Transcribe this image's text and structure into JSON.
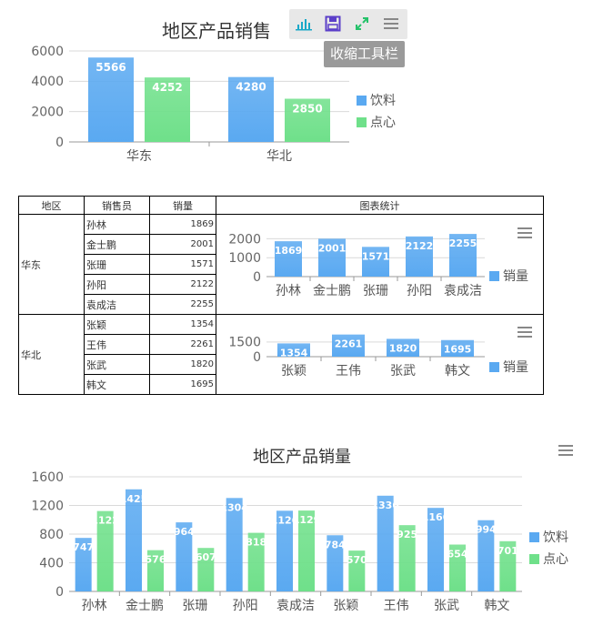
{
  "toolbar": {
    "tooltip": "收缩工具栏",
    "icons": [
      "bar-chart-icon",
      "save-icon",
      "expand-icon",
      "menu-icon"
    ]
  },
  "table": {
    "headers": [
      "地区",
      "销售员",
      "销量",
      "图表统计"
    ],
    "groups": [
      {
        "region": "华东",
        "rows": [
          {
            "name": "孙林",
            "value": "1869"
          },
          {
            "name": "金士鹏",
            "value": "2001"
          },
          {
            "name": "张珊",
            "value": "1571"
          },
          {
            "name": "孙阳",
            "value": "2122"
          },
          {
            "name": "袁成洁",
            "value": "2255"
          }
        ]
      },
      {
        "region": "华北",
        "rows": [
          {
            "name": "张颖",
            "value": "1354"
          },
          {
            "name": "王伟",
            "value": "2261"
          },
          {
            "name": "张武",
            "value": "1820"
          },
          {
            "name": "韩文",
            "value": "1695"
          }
        ]
      }
    ]
  },
  "colors": {
    "series1": "#5aa9f1",
    "series2": "#6fe08a",
    "axis": "#999999",
    "grid": "#d9d9d9"
  },
  "chart_data": [
    {
      "type": "bar",
      "title": "地区产品销售",
      "categories": [
        "华东",
        "华北"
      ],
      "series": [
        {
          "name": "饮料",
          "values": [
            5566,
            4280
          ]
        },
        {
          "name": "点心",
          "values": [
            4252,
            2850
          ]
        }
      ],
      "yticks": [
        0,
        2000,
        4000,
        6000
      ],
      "ylim": [
        0,
        6000
      ],
      "legend": "right"
    },
    {
      "type": "bar",
      "title": "",
      "categories": [
        "孙林",
        "金士鹏",
        "张珊",
        "孙阳",
        "袁成洁"
      ],
      "series": [
        {
          "name": "销量",
          "values": [
            1869,
            2001,
            1571,
            2122,
            2255
          ]
        }
      ],
      "yticks": [
        0,
        1000,
        2000
      ],
      "ylim": [
        0,
        2500
      ],
      "legend": "right"
    },
    {
      "type": "bar",
      "title": "",
      "categories": [
        "张颖",
        "王伟",
        "张武",
        "韩文"
      ],
      "series": [
        {
          "name": "销量",
          "values": [
            1354,
            2261,
            1820,
            1695
          ]
        }
      ],
      "yticks": [
        0,
        1500
      ],
      "ylim": [
        0,
        2600
      ],
      "legend": "right"
    },
    {
      "type": "bar",
      "title": "地区产品销量",
      "categories": [
        "孙林",
        "金士鹏",
        "张珊",
        "孙阳",
        "袁成洁",
        "张颖",
        "王伟",
        "张武",
        "韩文"
      ],
      "series": [
        {
          "name": "饮料",
          "values": [
            747,
            1425,
            964,
            1304,
            1126,
            784,
            1336,
            1166,
            994
          ]
        },
        {
          "name": "点心",
          "values": [
            1122,
            576,
            607,
            818,
            1129,
            570,
            925,
            654,
            701
          ]
        }
      ],
      "yticks": [
        0,
        400,
        800,
        1200,
        1600
      ],
      "ylim": [
        0,
        1600
      ],
      "legend": "right"
    }
  ]
}
